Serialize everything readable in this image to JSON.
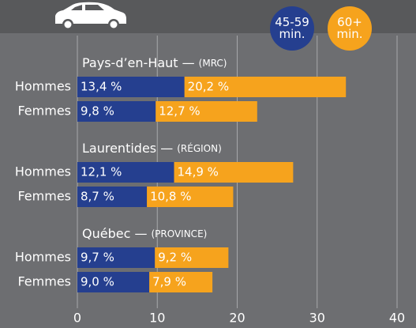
{
  "chart_data": {
    "type": "bar",
    "orientation": "horizontal",
    "stacked": true,
    "groups": [
      {
        "name": "Pays-d’en-Haut —",
        "qualifier": "(MRC)"
      },
      {
        "name": "Laurentides —",
        "qualifier": "(RÉGION)"
      },
      {
        "name": "Québec —",
        "qualifier": "(PROVINCE)"
      }
    ],
    "categories": [
      "Hommes",
      "Femmes",
      "Hommes",
      "Femmes",
      "Hommes",
      "Femmes"
    ],
    "series": [
      {
        "name": "45-59 min.",
        "color": "#253f8f",
        "values": [
          13.4,
          9.8,
          12.1,
          8.7,
          9.7,
          9.0
        ],
        "value_labels": [
          "13,4 %",
          "9,8 %",
          "12,1 %",
          "8,7 %",
          "9,7 %",
          "9,0 %"
        ]
      },
      {
        "name": "60+ min.",
        "color": "#f6a31d",
        "values": [
          20.2,
          12.7,
          14.9,
          10.8,
          9.2,
          7.9
        ],
        "value_labels": [
          "20,2 %",
          "12,7 %",
          "14,9 %",
          "10,8 %",
          "9,2 %",
          "7,9 %"
        ]
      }
    ],
    "xlim": [
      0,
      40
    ],
    "xticks": [
      0,
      10,
      20,
      30,
      40
    ],
    "grid": true
  }
}
